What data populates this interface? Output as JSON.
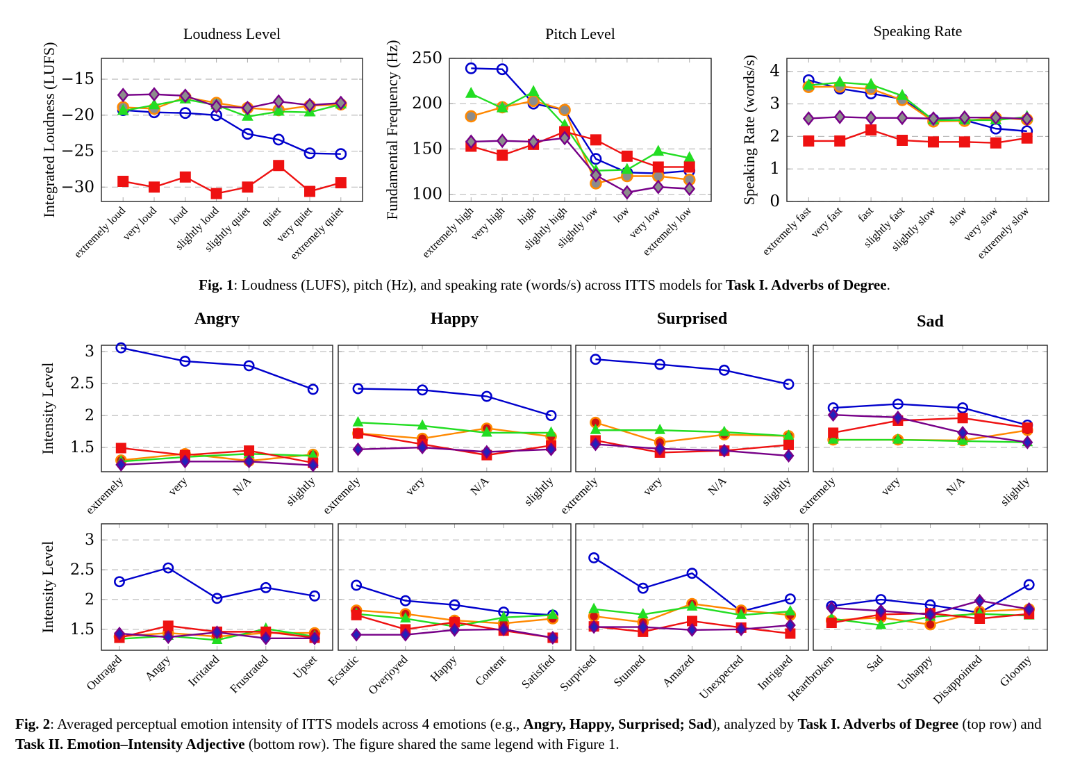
{
  "legend_note": "The figure shared the same legend with Figure 1.",
  "series_styles": [
    {
      "key": "blue",
      "color": "#0000cc",
      "marker": "circle-open"
    },
    {
      "key": "green",
      "color": "#22dd22",
      "marker": "triangle"
    },
    {
      "key": "orange",
      "color": "#ff8800",
      "marker": "circle-filled"
    },
    {
      "key": "red",
      "color": "#ee1111",
      "marker": "square"
    },
    {
      "key": "purple",
      "color": "#770088",
      "marker": "diamond"
    }
  ],
  "fig1_caption": {
    "label": "Fig. 1",
    "text": ": Loudness (LUFS), pitch (Hz), and speaking rate (words/s) across ITTS models for ",
    "bold_tail": "Task I. Adverbs of Degree",
    "end": "."
  },
  "fig2_caption": {
    "label": "Fig. 2",
    "text1": ": Averaged perceptual emotion intensity of ITTS models across 4 emotions (e.g., ",
    "bold1": "Angry, Happy, Surprised; Sad",
    "text2": "), analyzed by ",
    "bold2": "Task I. Adverbs of Degree",
    "text3": " (top row) and ",
    "bold3": "Task II. Emotion–Intensity Adjective",
    "text4": " (bottom row). The figure shared the same legend with Figure 1."
  },
  "chart_data": [
    {
      "id": "loudness",
      "type": "line",
      "title": "Loudness Level",
      "xlabel": "",
      "ylabel": "Integrated Loudness (LUFS)",
      "categories": [
        "extremely loud",
        "very loud",
        "loud",
        "slightly loud",
        "slightly quiet",
        "quiet",
        "very quiet",
        "extremely quiet"
      ],
      "ylim": [
        -32,
        -12.1
      ],
      "yticks": [
        -30,
        -25,
        -20,
        -15
      ],
      "ytick_labels": [
        "−30",
        "−25",
        "−20",
        "−15"
      ],
      "grid": true,
      "series": [
        {
          "name": "blue",
          "values": [
            -19.3,
            -19.6,
            -19.7,
            -20.0,
            -22.6,
            -23.4,
            -25.3,
            -25.4
          ]
        },
        {
          "name": "green",
          "values": [
            -19.4,
            -18.6,
            -17.8,
            -18.6,
            -20.2,
            -19.5,
            -19.6,
            -18.5
          ]
        },
        {
          "name": "orange",
          "values": [
            -18.9,
            -19.1,
            -17.5,
            -18.3,
            -19.0,
            -19.3,
            -18.7,
            -18.5
          ]
        },
        {
          "name": "red",
          "values": [
            -29.2,
            -30.0,
            -28.6,
            -30.9,
            -30.0,
            -27.0,
            -30.6,
            -29.4
          ]
        },
        {
          "name": "purple",
          "values": [
            -17.2,
            -17.1,
            -17.3,
            -18.8,
            -19.0,
            -18.1,
            -18.6,
            -18.3
          ]
        }
      ]
    },
    {
      "id": "pitch",
      "type": "line",
      "title": "Pitch Level",
      "xlabel": "",
      "ylabel": "Fundamental Frequency (Hz)",
      "categories": [
        "extremely high",
        "very high",
        "high",
        "slightly high",
        "slightly low",
        "low",
        "very low",
        "extremely low"
      ],
      "ylim": [
        92,
        250
      ],
      "yticks": [
        100,
        150,
        200,
        250
      ],
      "ytick_labels": [
        "100",
        "150",
        "200",
        "250"
      ],
      "grid": true,
      "series": [
        {
          "name": "blue",
          "values": [
            239,
            238,
            200,
            193,
            139,
            124,
            123,
            126
          ]
        },
        {
          "name": "green",
          "values": [
            211,
            195,
            213,
            176,
            126,
            127,
            147,
            140
          ]
        },
        {
          "name": "orange",
          "values": [
            186,
            196,
            203,
            193,
            112,
            120,
            120,
            116
          ]
        },
        {
          "name": "red",
          "values": [
            153,
            143,
            155,
            169,
            160,
            142,
            130,
            130
          ]
        },
        {
          "name": "purple",
          "values": [
            158,
            159,
            158,
            162,
            121,
            102,
            108,
            106
          ]
        }
      ]
    },
    {
      "id": "rate",
      "type": "line",
      "title": "Speaking Rate",
      "xlabel": "",
      "ylabel": "Speaking Rate (words/s)",
      "categories": [
        "extremely fast",
        "very fast",
        "fast",
        "slightly fast",
        "slightly slow",
        "slow",
        "very slow",
        "extremely slow"
      ],
      "ylim": [
        0,
        4.4
      ],
      "yticks": [
        0,
        1,
        2,
        3,
        4
      ],
      "ytick_labels": [
        "0",
        "1",
        "2",
        "3",
        "4"
      ],
      "grid": true,
      "series": [
        {
          "name": "blue",
          "values": [
            3.73,
            3.47,
            3.32,
            3.15,
            2.52,
            2.5,
            2.24,
            2.16
          ]
        },
        {
          "name": "green",
          "values": [
            3.57,
            3.66,
            3.59,
            3.25,
            2.5,
            2.5,
            2.5,
            2.6
          ]
        },
        {
          "name": "orange",
          "values": [
            3.52,
            3.53,
            3.46,
            3.12,
            2.46,
            2.48,
            2.57,
            2.52
          ]
        },
        {
          "name": "red",
          "values": [
            1.86,
            1.86,
            2.2,
            1.88,
            1.83,
            1.83,
            1.8,
            1.95
          ]
        },
        {
          "name": "purple",
          "values": [
            2.55,
            2.6,
            2.57,
            2.57,
            2.55,
            2.58,
            2.58,
            2.54
          ]
        }
      ]
    },
    {
      "id": "angry-adv",
      "type": "line",
      "title": "Angry",
      "ylabel": "Intensity Level",
      "row": "top",
      "categories": [
        "extremely",
        "very",
        "N/A",
        "slightly"
      ],
      "ylim": [
        1.12,
        3.1
      ],
      "yticks": [
        1.5,
        2,
        2.5,
        3
      ],
      "ytick_labels": [
        "1.5",
        "2",
        "2.5",
        "3"
      ],
      "grid": true,
      "series": [
        {
          "name": "blue",
          "values": [
            3.06,
            2.85,
            2.78,
            2.41
          ]
        },
        {
          "name": "green",
          "values": [
            1.28,
            1.35,
            1.4,
            1.37
          ]
        },
        {
          "name": "orange",
          "values": [
            1.3,
            1.4,
            1.29,
            1.39
          ]
        },
        {
          "name": "red",
          "values": [
            1.49,
            1.38,
            1.45,
            1.26
          ]
        },
        {
          "name": "purple",
          "values": [
            1.23,
            1.28,
            1.28,
            1.22
          ]
        }
      ]
    },
    {
      "id": "happy-adv",
      "type": "line",
      "title": "Happy",
      "ylabel": "",
      "row": "top",
      "categories": [
        "extremely",
        "very",
        "N/A",
        "slightly"
      ],
      "ylim": [
        1.12,
        3.1
      ],
      "yticks": [
        1.5,
        2,
        2.5,
        3
      ],
      "ytick_labels": [],
      "grid": true,
      "series": [
        {
          "name": "blue",
          "values": [
            2.42,
            2.4,
            2.3,
            2.0
          ]
        },
        {
          "name": "green",
          "values": [
            1.89,
            1.84,
            1.73,
            1.73
          ]
        },
        {
          "name": "orange",
          "values": [
            1.72,
            1.64,
            1.8,
            1.67
          ]
        },
        {
          "name": "red",
          "values": [
            1.72,
            1.55,
            1.38,
            1.53
          ]
        },
        {
          "name": "purple",
          "values": [
            1.47,
            1.5,
            1.43,
            1.47
          ]
        }
      ]
    },
    {
      "id": "surprised-adv",
      "type": "line",
      "title": "Surprised",
      "ylabel": "",
      "row": "top",
      "categories": [
        "extremely",
        "very",
        "N/A",
        "slightly"
      ],
      "ylim": [
        1.12,
        3.1
      ],
      "yticks": [
        1.5,
        2,
        2.5,
        3
      ],
      "ytick_labels": [],
      "grid": true,
      "series": [
        {
          "name": "blue",
          "values": [
            2.88,
            2.8,
            2.71,
            2.49
          ]
        },
        {
          "name": "green",
          "values": [
            1.77,
            1.77,
            1.74,
            1.68
          ]
        },
        {
          "name": "orange",
          "values": [
            1.89,
            1.58,
            1.7,
            1.68
          ]
        },
        {
          "name": "red",
          "values": [
            1.61,
            1.42,
            1.45,
            1.54
          ]
        },
        {
          "name": "purple",
          "values": [
            1.55,
            1.48,
            1.45,
            1.37
          ]
        }
      ]
    },
    {
      "id": "sad-adv",
      "type": "line",
      "title": "Sad",
      "ylabel": "",
      "row": "top",
      "categories": [
        "extremely",
        "very",
        "N/A",
        "slightly"
      ],
      "ylim": [
        1.12,
        3.1
      ],
      "yticks": [
        1.5,
        2,
        2.5,
        3
      ],
      "ytick_labels": [],
      "grid": true,
      "series": [
        {
          "name": "blue",
          "values": [
            2.12,
            2.18,
            2.12,
            1.85
          ]
        },
        {
          "name": "green",
          "values": [
            1.62,
            1.62,
            1.6,
            1.58
          ]
        },
        {
          "name": "orange",
          "values": [
            1.62,
            1.62,
            1.61,
            1.77
          ]
        },
        {
          "name": "red",
          "values": [
            1.73,
            1.92,
            1.96,
            1.81
          ]
        },
        {
          "name": "purple",
          "values": [
            2.01,
            1.97,
            1.73,
            1.58
          ]
        }
      ]
    },
    {
      "id": "angry-adj",
      "type": "line",
      "title": "",
      "ylabel": "Intensity Level",
      "row": "bottom",
      "categories": [
        "Outraged",
        "Angry",
        "Irritated",
        "Frustrated",
        "Upset"
      ],
      "ylim": [
        1.15,
        3.27
      ],
      "yticks": [
        1.5,
        2,
        2.5,
        3
      ],
      "ytick_labels": [
        "1.5",
        "2",
        "2.5",
        "3"
      ],
      "grid": true,
      "series": [
        {
          "name": "blue",
          "values": [
            2.3,
            2.53,
            2.02,
            2.2,
            2.06
          ]
        },
        {
          "name": "green",
          "values": [
            1.34,
            1.39,
            1.32,
            1.51,
            1.38
          ]
        },
        {
          "name": "orange",
          "values": [
            1.38,
            1.44,
            1.38,
            1.44,
            1.44
          ]
        },
        {
          "name": "red",
          "values": [
            1.36,
            1.56,
            1.46,
            1.46,
            1.36
          ]
        },
        {
          "name": "purple",
          "values": [
            1.43,
            1.37,
            1.45,
            1.35,
            1.35
          ]
        }
      ]
    },
    {
      "id": "happy-adj",
      "type": "line",
      "title": "",
      "ylabel": "",
      "row": "bottom",
      "categories": [
        "Ecstatic",
        "Overjoyed",
        "Happy",
        "Content",
        "Satisfied"
      ],
      "ylim": [
        1.15,
        3.27
      ],
      "yticks": [
        1.5,
        2,
        2.5,
        3
      ],
      "ytick_labels": [],
      "grid": true,
      "series": [
        {
          "name": "blue",
          "values": [
            2.24,
            1.98,
            1.91,
            1.79,
            1.74
          ]
        },
        {
          "name": "green",
          "values": [
            1.76,
            1.68,
            1.55,
            1.7,
            1.74
          ]
        },
        {
          "name": "orange",
          "values": [
            1.82,
            1.76,
            1.65,
            1.6,
            1.68
          ]
        },
        {
          "name": "red",
          "values": [
            1.74,
            1.5,
            1.62,
            1.48,
            1.36
          ]
        },
        {
          "name": "purple",
          "values": [
            1.41,
            1.41,
            1.49,
            1.5,
            1.36
          ]
        }
      ]
    },
    {
      "id": "surprised-adj",
      "type": "line",
      "title": "",
      "ylabel": "",
      "row": "bottom",
      "categories": [
        "Surprised",
        "Stunned",
        "Amazed",
        "Unexpected",
        "Intrigued"
      ],
      "ylim": [
        1.15,
        3.27
      ],
      "yticks": [
        1.5,
        2,
        2.5,
        3
      ],
      "ytick_labels": [],
      "grid": true,
      "series": [
        {
          "name": "blue",
          "values": [
            2.7,
            2.19,
            2.44,
            1.8,
            2.01
          ]
        },
        {
          "name": "green",
          "values": [
            1.84,
            1.75,
            1.88,
            1.74,
            1.8
          ]
        },
        {
          "name": "orange",
          "values": [
            1.72,
            1.62,
            1.93,
            1.82,
            1.74
          ]
        },
        {
          "name": "red",
          "values": [
            1.55,
            1.46,
            1.64,
            1.53,
            1.43
          ]
        },
        {
          "name": "purple",
          "values": [
            1.54,
            1.54,
            1.49,
            1.5,
            1.57
          ]
        }
      ]
    },
    {
      "id": "sad-adj",
      "type": "line",
      "title": "",
      "ylabel": "",
      "row": "bottom",
      "categories": [
        "Heartbroken",
        "Sad",
        "Unhappy",
        "Disappointed",
        "Gloomy"
      ],
      "ylim": [
        1.15,
        3.27
      ],
      "yticks": [
        1.5,
        2,
        2.5,
        3
      ],
      "ytick_labels": [],
      "grid": true,
      "series": [
        {
          "name": "blue",
          "values": [
            1.89,
            2.0,
            1.91,
            1.78,
            2.25
          ]
        },
        {
          "name": "green",
          "values": [
            1.68,
            1.57,
            1.71,
            1.76,
            1.73
          ]
        },
        {
          "name": "orange",
          "values": [
            1.65,
            1.7,
            1.58,
            1.8,
            1.84
          ]
        },
        {
          "name": "red",
          "values": [
            1.61,
            1.75,
            1.77,
            1.68,
            1.76
          ]
        },
        {
          "name": "purple",
          "values": [
            1.86,
            1.81,
            1.75,
            1.98,
            1.84
          ]
        }
      ]
    }
  ]
}
